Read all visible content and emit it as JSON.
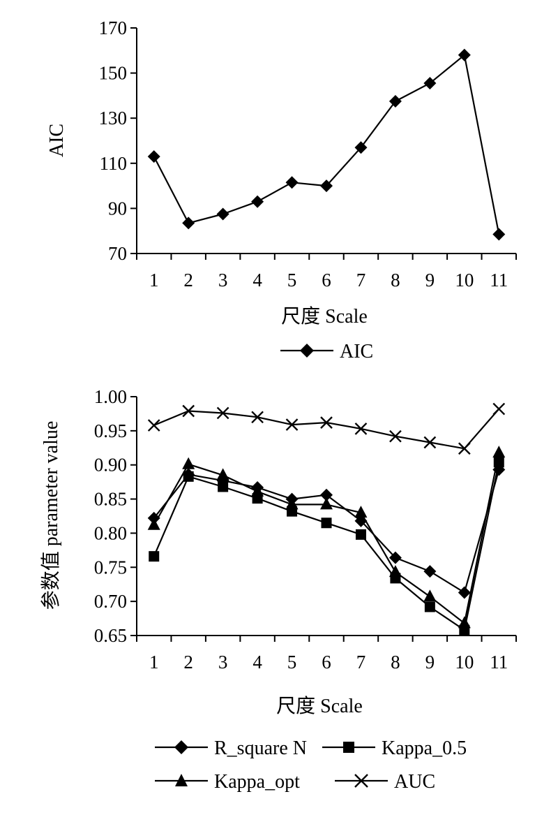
{
  "chart_data": [
    {
      "type": "line",
      "title": "",
      "xlabel": "尺度 Scale",
      "ylabel": "AIC",
      "x": [
        1,
        2,
        3,
        4,
        5,
        6,
        7,
        8,
        9,
        10,
        11
      ],
      "xlim": [
        0.5,
        11.5
      ],
      "ylim": [
        70,
        170
      ],
      "yticks": [
        70,
        90,
        110,
        130,
        150,
        170
      ],
      "yticks_labels": [
        "70",
        "90",
        "110",
        "130",
        "150",
        "170"
      ],
      "grid": false,
      "legend_position": "bottom",
      "series": [
        {
          "name": "AIC",
          "marker": "diamond",
          "color": "#000000",
          "values": [
            113,
            83.5,
            87.5,
            93,
            101.5,
            100,
            117,
            137.5,
            145.5,
            158,
            78.5
          ]
        }
      ]
    },
    {
      "type": "line",
      "title": "",
      "xlabel": "尺度 Scale",
      "ylabel": "参数值 parameter value",
      "x": [
        1,
        2,
        3,
        4,
        5,
        6,
        7,
        8,
        9,
        10,
        11
      ],
      "xlim": [
        0.5,
        11.5
      ],
      "ylim": [
        0.65,
        1.0
      ],
      "yticks": [
        0.65,
        0.7,
        0.75,
        0.8,
        0.85,
        0.9,
        0.95,
        1.0
      ],
      "yticks_labels": [
        "0.65",
        "0.70",
        "0.75",
        "0.80",
        "0.85",
        "0.90",
        "0.95",
        "1.00"
      ],
      "grid": false,
      "legend_position": "bottom",
      "series": [
        {
          "name": "R_square N",
          "marker": "diamond",
          "color": "#000000",
          "values": [
            0.822,
            0.886,
            0.877,
            0.867,
            0.85,
            0.856,
            0.818,
            0.764,
            0.744,
            0.713,
            0.893
          ]
        },
        {
          "name": "Kappa_0.5",
          "marker": "square",
          "color": "#000000",
          "values": [
            0.766,
            0.883,
            0.868,
            0.851,
            0.832,
            0.815,
            0.798,
            0.734,
            0.692,
            0.658,
            0.904
          ]
        },
        {
          "name": "Kappa_opt",
          "marker": "triangle",
          "color": "#000000",
          "values": [
            0.812,
            0.901,
            0.885,
            0.861,
            0.842,
            0.842,
            0.83,
            0.743,
            0.707,
            0.668,
            0.918
          ]
        },
        {
          "name": "AUC",
          "marker": "x",
          "color": "#000000",
          "values": [
            0.958,
            0.979,
            0.976,
            0.97,
            0.959,
            0.962,
            0.953,
            0.942,
            0.933,
            0.924,
            0.982
          ]
        }
      ]
    }
  ]
}
